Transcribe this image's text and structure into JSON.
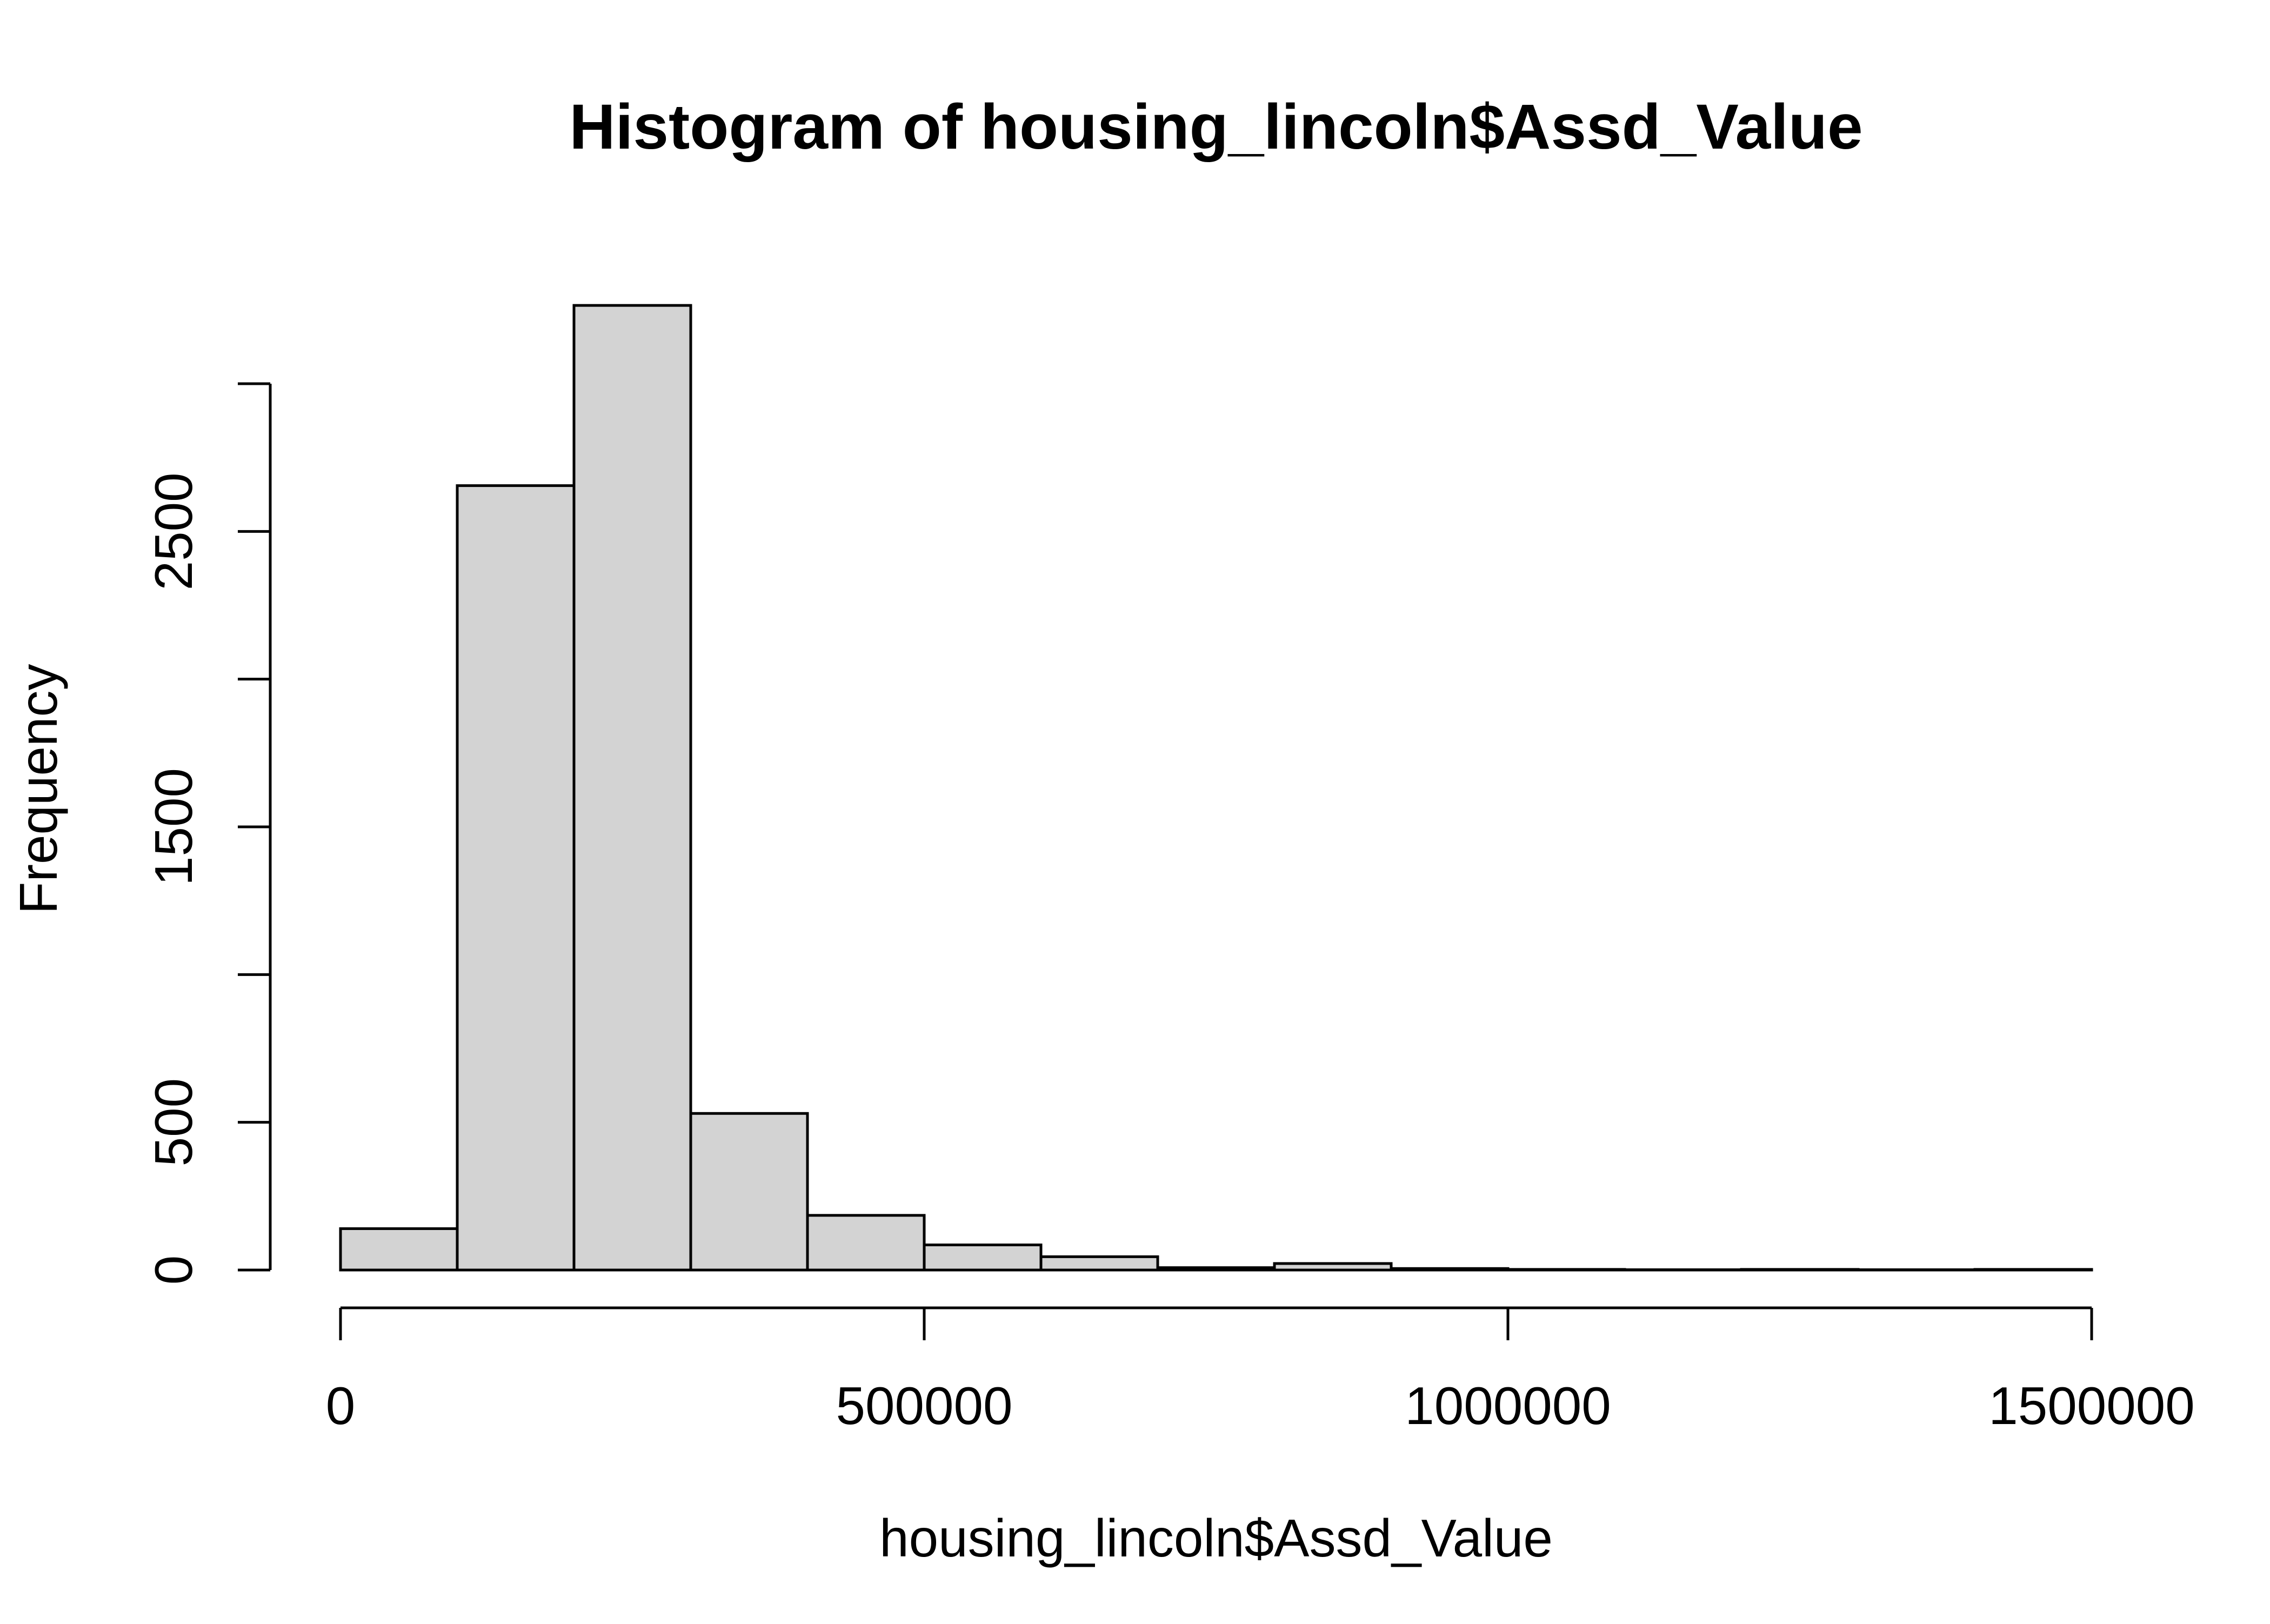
{
  "chart_data": {
    "type": "bar",
    "title": "Histogram of housing_lincoln$Assd_Value",
    "xlabel": "housing_lincoln$Assd_Value",
    "ylabel": "Frequency",
    "bin_edges": [
      0,
      100000,
      200000,
      300000,
      400000,
      500000,
      600000,
      700000,
      800000,
      900000,
      1000000,
      1100000,
      1200000,
      1300000,
      1400000,
      1500000
    ],
    "values": [
      140,
      2655,
      3265,
      530,
      185,
      85,
      45,
      8,
      22,
      5,
      2,
      1,
      2,
      1,
      2
    ],
    "xlim": [
      0,
      1500000
    ],
    "ylim": [
      0,
      3000
    ],
    "x_ticks": [
      0,
      500000,
      1000000,
      1500000
    ],
    "x_tick_labels": [
      "0",
      "500000",
      "1000000",
      "1500000"
    ],
    "y_ticks": [
      0,
      500,
      1000,
      1500,
      2000,
      2500,
      3000
    ],
    "y_tick_labels": [
      "0",
      "500",
      "",
      "1500",
      "",
      "2500",
      ""
    ],
    "bar_fill": "#d3d3d3",
    "bar_stroke": "#000000",
    "grid": false,
    "legend": "none"
  }
}
